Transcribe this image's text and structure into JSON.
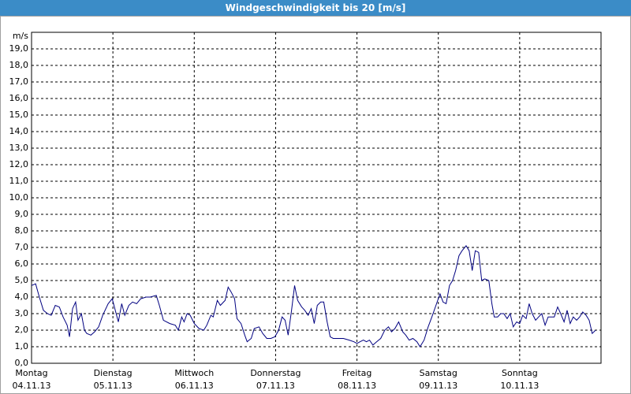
{
  "chart_data": {
    "type": "line",
    "title": "Windgeschwindigkeit bis 20 [m/s]",
    "y_unit": "m/s",
    "xlim": [
      0,
      168
    ],
    "ylim": [
      0,
      20
    ],
    "grid": true,
    "xticks": [
      {
        "value": 0,
        "label": "Montag"
      },
      {
        "value": 24,
        "label": "Dienstag"
      },
      {
        "value": 48,
        "label": "Mittwoch"
      },
      {
        "value": 72,
        "label": "Donnerstag"
      },
      {
        "value": 96,
        "label": "Freitag"
      },
      {
        "value": 120,
        "label": "Samstag"
      },
      {
        "value": 144,
        "label": "Sonntag"
      }
    ],
    "xtick_dates": [
      "04.11.13",
      "05.11.13",
      "06.11.13",
      "07.11.13",
      "08.11.13",
      "09.11.13",
      "10.11.13"
    ],
    "yticks": [
      {
        "value": 0,
        "label": "0,0"
      },
      {
        "value": 1,
        "label": "1,0"
      },
      {
        "value": 2,
        "label": "2,0"
      },
      {
        "value": 3,
        "label": "3,0"
      },
      {
        "value": 4,
        "label": "4,0"
      },
      {
        "value": 5,
        "label": "5,0"
      },
      {
        "value": 6,
        "label": "6,0"
      },
      {
        "value": 7,
        "label": "7,0"
      },
      {
        "value": 8,
        "label": "8,0"
      },
      {
        "value": 9,
        "label": "9,0"
      },
      {
        "value": 10,
        "label": "10,0"
      },
      {
        "value": 11,
        "label": "11,0"
      },
      {
        "value": 12,
        "label": "12,0"
      },
      {
        "value": 13,
        "label": "13,0"
      },
      {
        "value": 14,
        "label": "14,0"
      },
      {
        "value": 15,
        "label": "15,0"
      },
      {
        "value": 16,
        "label": "16,0"
      },
      {
        "value": 17,
        "label": "17,0"
      },
      {
        "value": 18,
        "label": "18,0"
      },
      {
        "value": 19,
        "label": "19,0"
      }
    ],
    "x": [
      0,
      1.2,
      2.3,
      3.5,
      4.7,
      5.8,
      7.0,
      8.2,
      9.3,
      10.5,
      11.2,
      12.1,
      13.0,
      13.7,
      14.7,
      15.6,
      16.3,
      17.5,
      18.6,
      19.8,
      21.0,
      22.6,
      23.8,
      24.7,
      25.6,
      26.6,
      27.5,
      28.7,
      29.8,
      31.0,
      32.2,
      33.8,
      35.0,
      36.8,
      37.7,
      38.9,
      40.8,
      42.4,
      43.3,
      44.3,
      45.0,
      45.9,
      46.8,
      48.0,
      49.4,
      50.8,
      51.7,
      52.9,
      53.6,
      54.8,
      55.7,
      57.1,
      58.0,
      58.9,
      59.9,
      60.6,
      61.8,
      62.9,
      63.6,
      64.8,
      65.7,
      67.1,
      68.2,
      69.4,
      70.6,
      71.8,
      72.9,
      73.9,
      74.8,
      75.7,
      76.7,
      77.6,
      78.5,
      79.7,
      80.6,
      81.6,
      82.5,
      83.4,
      84.3,
      85.3,
      86.2,
      87.2,
      88.1,
      89.0,
      92.0,
      93.7,
      95.1,
      96.0,
      96.9,
      97.9,
      98.8,
      99.7,
      100.7,
      101.8,
      103.0,
      104.2,
      105.3,
      106.2,
      107.2,
      108.3,
      109.5,
      110.4,
      111.4,
      112.5,
      113.7,
      114.6,
      115.8,
      117.0,
      118.1,
      119.3,
      120.5,
      121.4,
      122.3,
      123.3,
      124.2,
      125.1,
      126.1,
      127.0,
      128.2,
      129.1,
      130.0,
      130.9,
      131.9,
      132.8,
      133.7,
      134.9,
      135.8,
      136.5,
      137.5,
      138.4,
      139.3,
      140.3,
      141.2,
      142.1,
      143.1,
      144.0,
      144.9,
      145.9,
      146.8,
      147.7,
      148.7,
      149.6,
      150.5,
      151.5,
      152.4,
      153.3,
      154.2,
      155.2,
      156.1,
      157.1,
      158.0,
      158.9,
      159.8,
      160.8,
      161.7,
      162.6,
      163.6,
      164.5,
      165.4,
      166.4
    ],
    "series": [
      {
        "color": "#000080",
        "values": [
          4.7,
          4.8,
          4.0,
          3.2,
          3.0,
          2.9,
          3.5,
          3.4,
          2.8,
          2.3,
          1.6,
          3.3,
          3.7,
          2.6,
          3.0,
          2.0,
          1.8,
          1.7,
          1.9,
          2.2,
          2.9,
          3.6,
          3.9,
          3.2,
          2.5,
          3.6,
          2.9,
          3.5,
          3.7,
          3.6,
          3.9,
          4.0,
          4.0,
          4.1,
          3.5,
          2.6,
          2.4,
          2.3,
          2.0,
          2.8,
          2.5,
          3.0,
          2.9,
          2.4,
          2.1,
          2.0,
          2.3,
          2.9,
          2.8,
          3.8,
          3.5,
          3.8,
          4.6,
          4.3,
          3.9,
          2.7,
          2.4,
          1.7,
          1.3,
          1.5,
          2.1,
          2.2,
          1.8,
          1.5,
          1.5,
          1.6,
          2.0,
          2.8,
          2.6,
          1.7,
          3.2,
          4.7,
          3.8,
          3.4,
          3.2,
          2.9,
          3.3,
          2.4,
          3.5,
          3.7,
          3.7,
          2.5,
          1.6,
          1.5,
          1.5,
          1.4,
          1.3,
          1.2,
          1.3,
          1.4,
          1.3,
          1.4,
          1.1,
          1.3,
          1.5,
          2.0,
          2.2,
          1.9,
          2.1,
          2.5,
          1.9,
          1.7,
          1.4,
          1.5,
          1.3,
          1.0,
          1.4,
          2.2,
          2.8,
          3.5,
          4.2,
          3.7,
          3.6,
          4.7,
          5.0,
          5.6,
          6.5,
          6.8,
          7.1,
          6.8,
          5.6,
          6.8,
          6.7,
          5.0,
          5.1,
          5.0,
          3.6,
          2.8,
          2.8,
          3.0,
          3.0,
          2.7,
          3.0,
          2.2,
          2.5,
          2.4,
          2.9,
          2.7,
          3.6,
          3.0,
          2.6,
          2.8,
          3.0,
          2.3,
          2.8,
          2.8,
          2.8,
          3.4,
          3.0,
          2.5,
          3.2,
          2.4,
          2.8,
          2.6,
          2.8,
          3.1,
          2.9,
          2.6,
          1.8,
          2.0
        ]
      }
    ]
  }
}
